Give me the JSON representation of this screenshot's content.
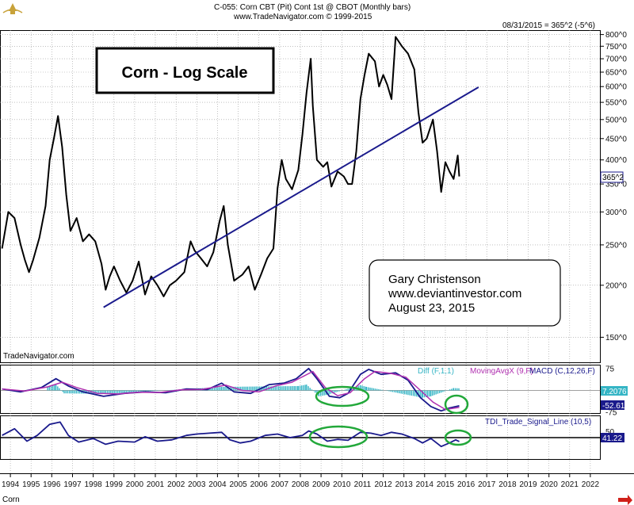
{
  "header": {
    "line1": "C-055:  Corn CBT (Pit) Cont 1st @ CBOT  (Monthly bars)",
    "line2": "www.TradeNavigator.com © 1999-2015",
    "last_quote": "08/31/2015 = 365^2 (-5^6)"
  },
  "colors": {
    "price": "#000000",
    "trendline": "#1a1a8c",
    "macd": "#1a1a8c",
    "signal": "#b030b0",
    "diff": "#35b5c5",
    "tdi": "#1a1a8c",
    "annotation": "#22a83a",
    "last_box": "#1a1a8c",
    "arrow": "#d0201a"
  },
  "watermark": "TradeNavigator.com",
  "symbol_label": "Corn",
  "chart_data": [
    {
      "type": "line",
      "title": "Corn - Log Scale",
      "scale": "log",
      "xlim": [
        1993.5,
        2022.5
      ],
      "ylim": [
        130,
        820
      ],
      "y_ticks": [
        150,
        200,
        250,
        300,
        350,
        400,
        450,
        500,
        550,
        600,
        650,
        700,
        750,
        800
      ],
      "y_tick_labels": [
        "150^0",
        "200^0",
        "250^0",
        "300^0",
        "350^0",
        "400^0",
        "450^0",
        "500^0",
        "550^0",
        "600^0",
        "650^0",
        "700^0",
        "750^0",
        "800^0"
      ],
      "x_ticks": [
        1994,
        1995,
        1996,
        1997,
        1998,
        1999,
        2000,
        2001,
        2002,
        2003,
        2004,
        2005,
        2006,
        2007,
        2008,
        2009,
        2010,
        2011,
        2012,
        2013,
        2014,
        2015,
        2016,
        2017,
        2018,
        2019,
        2020,
        2021,
        2022
      ],
      "last_label": "365^2",
      "grid": true,
      "series": [
        {
          "kind": "price",
          "points": [
            [
              1993.6,
              245
            ],
            [
              1993.9,
              300
            ],
            [
              1994.2,
              290
            ],
            [
              1994.5,
              250
            ],
            [
              1994.7,
              230
            ],
            [
              1994.9,
              215
            ],
            [
              1995.1,
              230
            ],
            [
              1995.4,
              260
            ],
            [
              1995.7,
              310
            ],
            [
              1995.9,
              400
            ],
            [
              1996.1,
              450
            ],
            [
              1996.3,
              510
            ],
            [
              1996.5,
              430
            ],
            [
              1996.7,
              330
            ],
            [
              1996.9,
              270
            ],
            [
              1997.2,
              290
            ],
            [
              1997.5,
              255
            ],
            [
              1997.8,
              265
            ],
            [
              1998.1,
              255
            ],
            [
              1998.4,
              225
            ],
            [
              1998.6,
              195
            ],
            [
              1998.8,
              210
            ],
            [
              1999.0,
              222
            ],
            [
              1999.3,
              205
            ],
            [
              1999.6,
              192
            ],
            [
              1999.9,
              205
            ],
            [
              2000.2,
              228
            ],
            [
              2000.5,
              190
            ],
            [
              2000.8,
              210
            ],
            [
              2001.1,
              200
            ],
            [
              2001.4,
              188
            ],
            [
              2001.7,
              200
            ],
            [
              2002.0,
              205
            ],
            [
              2002.4,
              215
            ],
            [
              2002.7,
              255
            ],
            [
              2002.9,
              242
            ],
            [
              2003.2,
              232
            ],
            [
              2003.5,
              222
            ],
            [
              2003.8,
              240
            ],
            [
              2004.1,
              285
            ],
            [
              2004.3,
              310
            ],
            [
              2004.5,
              250
            ],
            [
              2004.8,
              205
            ],
            [
              2005.2,
              212
            ],
            [
              2005.5,
              222
            ],
            [
              2005.8,
              195
            ],
            [
              2006.1,
              212
            ],
            [
              2006.4,
              232
            ],
            [
              2006.7,
              245
            ],
            [
              2006.9,
              342
            ],
            [
              2007.1,
              400
            ],
            [
              2007.3,
              360
            ],
            [
              2007.6,
              340
            ],
            [
              2007.9,
              378
            ],
            [
              2008.1,
              460
            ],
            [
              2008.3,
              580
            ],
            [
              2008.5,
              700
            ],
            [
              2008.6,
              540
            ],
            [
              2008.8,
              400
            ],
            [
              2009.1,
              385
            ],
            [
              2009.3,
              395
            ],
            [
              2009.5,
              345
            ],
            [
              2009.8,
              375
            ],
            [
              2010.1,
              365
            ],
            [
              2010.3,
              350
            ],
            [
              2010.5,
              350
            ],
            [
              2010.7,
              420
            ],
            [
              2010.9,
              560
            ],
            [
              2011.1,
              640
            ],
            [
              2011.3,
              720
            ],
            [
              2011.6,
              690
            ],
            [
              2011.8,
              600
            ],
            [
              2012.0,
              640
            ],
            [
              2012.2,
              605
            ],
            [
              2012.4,
              560
            ],
            [
              2012.6,
              790
            ],
            [
              2012.9,
              750
            ],
            [
              2013.2,
              720
            ],
            [
              2013.5,
              660
            ],
            [
              2013.7,
              520
            ],
            [
              2013.9,
              440
            ],
            [
              2014.1,
              450
            ],
            [
              2014.4,
              500
            ],
            [
              2014.6,
              420
            ],
            [
              2014.8,
              335
            ],
            [
              2015.0,
              395
            ],
            [
              2015.2,
              375
            ],
            [
              2015.4,
              360
            ],
            [
              2015.6,
              410
            ],
            [
              2015.67,
              365
            ]
          ]
        },
        {
          "kind": "trendline",
          "points": [
            [
              1998.5,
              177
            ],
            [
              2016.6,
              598
            ]
          ]
        }
      ]
    },
    {
      "type": "line",
      "title": "MACD (C,12,26,F)",
      "legend": [
        "Diff (F,1,1)",
        "MovingAvgX (9,F)",
        "MACD (C,12,26,F)"
      ],
      "ylim": [
        -80,
        88
      ],
      "y_tick_labels": [
        [
          "75",
          75
        ],
        [
          "-75",
          -75
        ]
      ],
      "last_values": [
        "7.2076",
        "-52.61"
      ],
      "series": [
        {
          "kind": "macd",
          "points": [
            [
              1993.6,
              5
            ],
            [
              1994.5,
              -5
            ],
            [
              1995.5,
              10
            ],
            [
              1996.2,
              40
            ],
            [
              1996.8,
              15
            ],
            [
              1997.5,
              -5
            ],
            [
              1998.5,
              -20
            ],
            [
              1999.5,
              -10
            ],
            [
              2000.5,
              -5
            ],
            [
              2001.5,
              -8
            ],
            [
              2002.5,
              5
            ],
            [
              2003.5,
              3
            ],
            [
              2004.2,
              25
            ],
            [
              2004.8,
              -5
            ],
            [
              2005.6,
              -10
            ],
            [
              2006.5,
              20
            ],
            [
              2007.2,
              25
            ],
            [
              2007.8,
              40
            ],
            [
              2008.4,
              75
            ],
            [
              2008.8,
              40
            ],
            [
              2009.4,
              -20
            ],
            [
              2009.9,
              -25
            ],
            [
              2010.3,
              -10
            ],
            [
              2010.9,
              55
            ],
            [
              2011.3,
              72
            ],
            [
              2011.9,
              55
            ],
            [
              2012.6,
              60
            ],
            [
              2013.2,
              35
            ],
            [
              2013.8,
              -25
            ],
            [
              2014.3,
              -55
            ],
            [
              2014.8,
              -70
            ],
            [
              2015.2,
              -60
            ],
            [
              2015.67,
              -52.61
            ]
          ]
        },
        {
          "kind": "signal",
          "points": [
            [
              1993.6,
              5
            ],
            [
              1994.7,
              -2
            ],
            [
              1995.8,
              12
            ],
            [
              1996.5,
              28
            ],
            [
              1997.2,
              10
            ],
            [
              1998.2,
              -10
            ],
            [
              1999.2,
              -12
            ],
            [
              2000.2,
              -6
            ],
            [
              2001.2,
              -7
            ],
            [
              2002.2,
              2
            ],
            [
              2003.2,
              3
            ],
            [
              2004.4,
              18
            ],
            [
              2005.2,
              0
            ],
            [
              2006.0,
              -5
            ],
            [
              2006.8,
              15
            ],
            [
              2007.6,
              28
            ],
            [
              2008.6,
              65
            ],
            [
              2009.2,
              10
            ],
            [
              2009.8,
              -18
            ],
            [
              2010.4,
              -8
            ],
            [
              2011.1,
              40
            ],
            [
              2011.6,
              65
            ],
            [
              2012.4,
              58
            ],
            [
              2013.1,
              45
            ],
            [
              2013.8,
              0
            ],
            [
              2014.4,
              -40
            ],
            [
              2015.0,
              -65
            ],
            [
              2015.67,
              -58
            ]
          ]
        },
        {
          "kind": "diff",
          "points": [
            [
              1995.8,
              12
            ],
            [
              1996.2,
              20
            ],
            [
              1996.6,
              -10
            ],
            [
              1998.6,
              -12
            ],
            [
              2004.2,
              12
            ],
            [
              2007.9,
              15
            ],
            [
              2008.3,
              20
            ],
            [
              2008.9,
              -20
            ],
            [
              2009.3,
              -15
            ],
            [
              2010.9,
              18
            ],
            [
              2011.2,
              12
            ],
            [
              2013.9,
              -25
            ],
            [
              2014.3,
              -20
            ],
            [
              2015.4,
              8
            ],
            [
              2015.67,
              7.2076
            ]
          ]
        }
      ]
    },
    {
      "type": "line",
      "title": "TDI_Trade_Signal_Line (10,5)",
      "ylim": [
        0,
        100
      ],
      "y_tick_labels": [
        [
          "50",
          50
        ]
      ],
      "hline": 50,
      "last_value": "41.22",
      "series": [
        {
          "kind": "tdi",
          "points": [
            [
              1993.6,
              55
            ],
            [
              1994.2,
              70
            ],
            [
              1994.8,
              42
            ],
            [
              1995.3,
              55
            ],
            [
              1995.9,
              80
            ],
            [
              1996.4,
              85
            ],
            [
              1996.8,
              55
            ],
            [
              1997.3,
              40
            ],
            [
              1998.0,
              48
            ],
            [
              1998.6,
              35
            ],
            [
              1999.2,
              42
            ],
            [
              2000.0,
              40
            ],
            [
              2000.5,
              52
            ],
            [
              2001.1,
              42
            ],
            [
              2001.8,
              45
            ],
            [
              2002.5,
              55
            ],
            [
              2003.0,
              58
            ],
            [
              2003.6,
              60
            ],
            [
              2004.2,
              62
            ],
            [
              2004.6,
              45
            ],
            [
              2005.1,
              38
            ],
            [
              2005.6,
              42
            ],
            [
              2006.3,
              55
            ],
            [
              2006.9,
              58
            ],
            [
              2007.5,
              50
            ],
            [
              2008.1,
              55
            ],
            [
              2008.4,
              65
            ],
            [
              2008.8,
              58
            ],
            [
              2009.3,
              42
            ],
            [
              2009.8,
              46
            ],
            [
              2010.3,
              44
            ],
            [
              2010.9,
              62
            ],
            [
              2011.4,
              60
            ],
            [
              2011.9,
              55
            ],
            [
              2012.4,
              62
            ],
            [
              2012.9,
              58
            ],
            [
              2013.5,
              48
            ],
            [
              2013.9,
              38
            ],
            [
              2014.3,
              48
            ],
            [
              2014.8,
              30
            ],
            [
              2015.2,
              38
            ],
            [
              2015.5,
              45
            ],
            [
              2015.67,
              41.22
            ]
          ]
        }
      ]
    }
  ],
  "annotation": {
    "lines": [
      "Gary Christenson",
      "www.deviantinvestor.com",
      "August 23, 2015"
    ]
  }
}
